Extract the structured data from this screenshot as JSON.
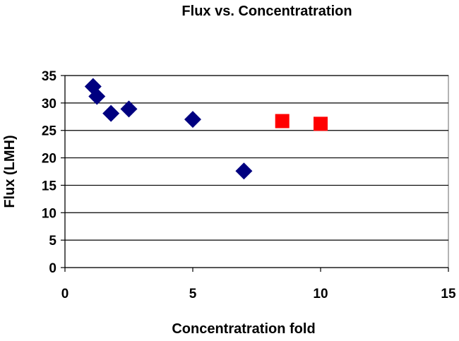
{
  "chart_data": {
    "type": "scatter",
    "title": "Flux vs. Concentratration",
    "xlabel": "Concentratration fold",
    "ylabel": "Flux (LMH)",
    "xlim": [
      0,
      15
    ],
    "ylim": [
      0,
      35
    ],
    "xticks": [
      0,
      5,
      10,
      15
    ],
    "yticks": [
      0,
      5,
      10,
      15,
      20,
      25,
      30,
      35
    ],
    "grid": "horizontal",
    "legend": "none",
    "series": [
      {
        "marker": "diamond",
        "color": "#000080",
        "points": [
          {
            "x": 1.1,
            "y": 33.0
          },
          {
            "x": 1.25,
            "y": 31.2
          },
          {
            "x": 1.8,
            "y": 28.1
          },
          {
            "x": 2.5,
            "y": 28.9
          },
          {
            "x": 5.0,
            "y": 27.0
          },
          {
            "x": 7.0,
            "y": 17.6
          }
        ]
      },
      {
        "marker": "square",
        "color": "#ff0000",
        "points": [
          {
            "x": 8.5,
            "y": 26.7
          },
          {
            "x": 10.0,
            "y": 26.2
          }
        ]
      }
    ]
  }
}
